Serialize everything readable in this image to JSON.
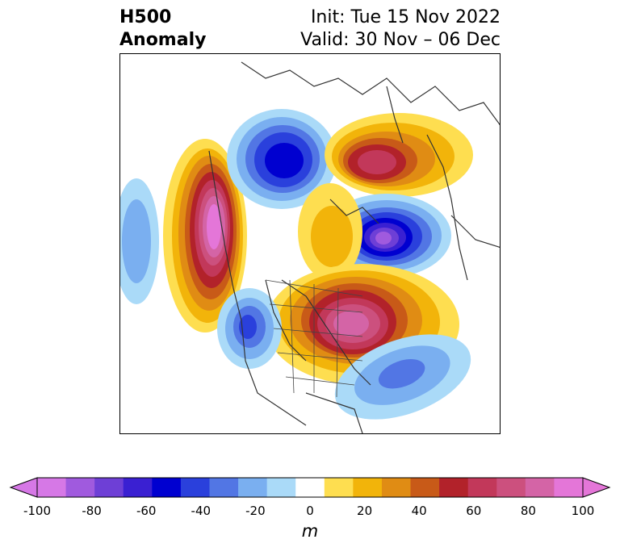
{
  "title": {
    "left_line1": "H500",
    "left_line2": "Anomaly",
    "right_line1": "Init: Tue 15 Nov 2022",
    "right_line2": "Valid: 30 Nov – 06 Dec"
  },
  "colorbar": {
    "unit": "m",
    "ticks": [
      "-100",
      "-80",
      "-60",
      "-40",
      "-20",
      "0",
      "20",
      "40",
      "60",
      "80",
      "100"
    ],
    "colors": [
      "#d678e6",
      "#a05ade",
      "#6e3fd6",
      "#3a20d2",
      "#0000d0",
      "#2a40dc",
      "#5276e4",
      "#7aaff0",
      "#aadaf8",
      "#ffffff",
      "#fede50",
      "#f2b40a",
      "#e08c14",
      "#c85a18",
      "#b2222a",
      "#c2385a",
      "#cc507e",
      "#d464a6",
      "#e476d8"
    ],
    "extend_low_color": "#d678e6",
    "extend_high_color": "#e476d8"
  },
  "map": {
    "description_colors": {
      "negative": "#2a40dc",
      "positive": "#b2222a"
    }
  }
}
